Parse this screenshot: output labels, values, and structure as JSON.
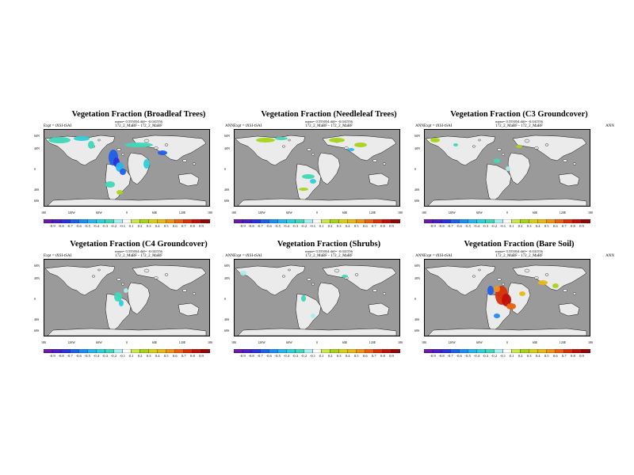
{
  "colorbar": {
    "ticks": [
      "-0.9",
      "-0.8",
      "-0.7",
      "-0.6",
      "-0.5",
      "-0.4",
      "-0.3",
      "-0.2",
      "-0.1",
      "0.1",
      "0.2",
      "0.3",
      "0.4",
      "0.5",
      "0.6",
      "0.7",
      "0.8",
      "0.9"
    ],
    "colors": [
      "#6a1ba8",
      "#4a1ec0",
      "#2d32d8",
      "#1f5ee8",
      "#1f8cf2",
      "#28b4f0",
      "#2fcfd8",
      "#3fd7b8",
      "#a8eef0",
      "#ffffff",
      "#c8e850",
      "#a8d418",
      "#d8d018",
      "#e8b818",
      "#f09018",
      "#e86010",
      "#d83008",
      "#c01008",
      "#900808"
    ]
  },
  "panels": [
    {
      "id": "broadleaf",
      "title": "Vegetation Fraction (Broadleaf Trees)",
      "subtitle": "mean= 0.555054 diff= -0.041556",
      "left": "Expt = tXSI-tSAI",
      "mid": "172_2_MaBF - 172_2_MaBF",
      "right": "ANN"
    },
    {
      "id": "needleleaf",
      "title": "Vegetation Fraction (Needleleaf Trees)",
      "subtitle": "mean= 0.555054 diff= -0.041556",
      "left": "Expt = tXSI-tSAI",
      "mid": "172_2_MaBF - 172_2_MaBF",
      "right": "ANN"
    },
    {
      "id": "c3",
      "title": "Vegetation Fraction (C3 Groundcover)",
      "subtitle": "mean= 0.555054 diff= -0.041556",
      "left": "Expt = tXSI-tSAI",
      "mid": "172_2_MaBF - 172_2_MaBF",
      "right": "ANN"
    },
    {
      "id": "c4",
      "title": "Vegetation Fraction (C4 Groundcover)",
      "subtitle": "mean= 0.555054 diff= -0.041556",
      "left": "Expt = tXSI-tSAI",
      "mid": "172_2_MaBF - 172_2_MaBF",
      "right": "ANN"
    },
    {
      "id": "shrubs",
      "title": "Vegetation Fraction (Shrubs)",
      "subtitle": "mean= 0.555054 diff= -0.041556",
      "left": "Expt = tXSI-tSAI",
      "mid": "172_2_MaBF - 172_2_MaBF",
      "right": "ANN"
    },
    {
      "id": "baresoil",
      "title": "Vegetation Fraction (Bare Soil)",
      "subtitle": "mean= 0.555054 diff= -0.041556",
      "left": "Expt = tXSI-tSAI",
      "mid": "172_2_MaBF - 172_2_MaBF",
      "right": "ANN"
    }
  ],
  "axes": {
    "lat_labels": [
      "60N",
      "40N",
      "0",
      "40S",
      "60S"
    ],
    "lon_labels": [
      "180",
      "120W",
      "60W",
      "0",
      "60E",
      "120E",
      "180"
    ]
  },
  "map_colors": {
    "ocean": "#9a9a9a",
    "land": "#ebebeb"
  }
}
